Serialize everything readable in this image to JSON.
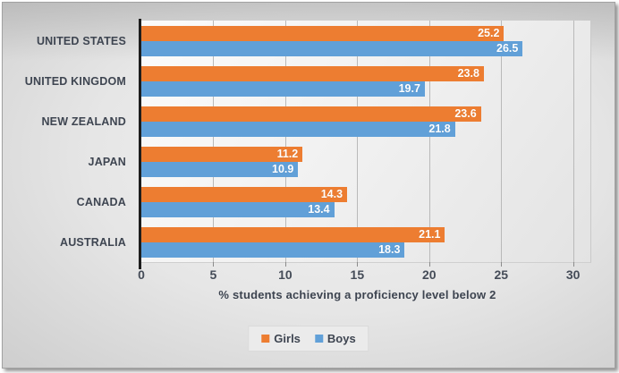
{
  "chart_data": {
    "type": "bar",
    "orientation": "horizontal",
    "categories": [
      "UNITED STATES",
      "UNITED KINGDOM",
      "NEW ZEALAND",
      "JAPAN",
      "CANADA",
      "AUSTRALIA"
    ],
    "series": [
      {
        "name": "Girls",
        "color": "#ED7D31",
        "values": [
          25.2,
          23.8,
          23.6,
          11.2,
          14.3,
          21.1
        ]
      },
      {
        "name": "Boys",
        "color": "#61A0D8",
        "values": [
          26.5,
          19.7,
          21.8,
          10.9,
          13.4,
          18.3
        ]
      }
    ],
    "xlabel": "% students achieving a proficiency level below 2",
    "xlim": [
      0,
      30
    ],
    "xticks": [
      0,
      5,
      10,
      15,
      20,
      25,
      30
    ],
    "grid": true,
    "legend_position": "bottom",
    "data_labels": "inside-end",
    "value_label_color": "#ffffff",
    "text_color": "#3e4551",
    "gridline_color": "#b9b9b9"
  },
  "legend": {
    "items": [
      {
        "label": "Girls",
        "color": "#ED7D31"
      },
      {
        "label": "Boys",
        "color": "#61A0D8"
      }
    ]
  }
}
